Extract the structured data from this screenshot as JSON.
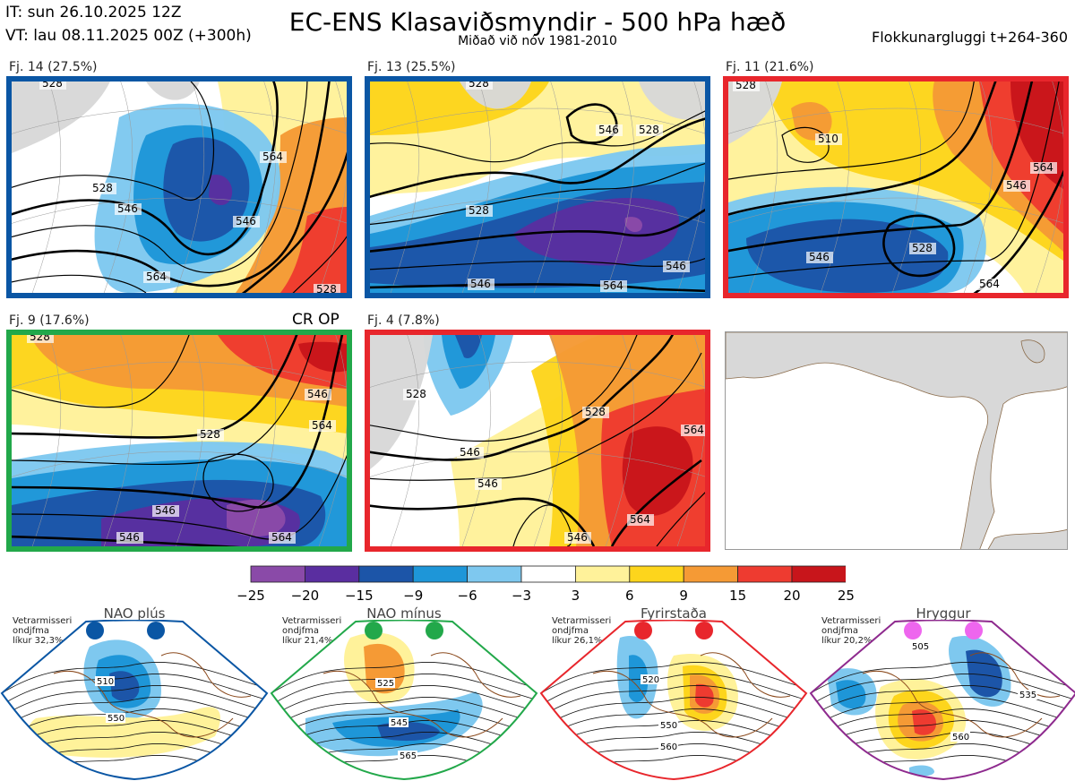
{
  "header": {
    "it": "IT: sun 26.10.2025 12Z",
    "vt": "VT: lau 08.11.2025 00Z  (+300h)",
    "title": "EC-ENS Klasaviðsmyndir - 500 hPa hæð",
    "subtitle": "Miðað við nóv 1981-2010",
    "window": "Flokkunargluggi t+264-360"
  },
  "colors": {
    "m25": "#8a4aa8",
    "m20": "#5a2ea0",
    "m15": "#1c55a8",
    "m9": "#1e96d8",
    "m6": "#7ec8ef",
    "z": "#ffffff",
    "p3": "#fff29a",
    "p6": "#fdd51c",
    "p9": "#f59a35",
    "p15": "#ee3b30",
    "p20": "#c8151b",
    "land": "#d8d8d8",
    "blue_border": "#0a56a4",
    "red_border": "#e8262c",
    "green_border": "#22a84a",
    "purple_border": "#8e2a8e",
    "magenta_dot": "#ee66ee"
  },
  "panels": [
    {
      "label": "Fj. 14 (27.5%)",
      "border": "blue",
      "contours": [
        "528",
        "546",
        "528",
        "546",
        "564",
        "564",
        "528"
      ]
    },
    {
      "label": "Fj. 13 (25.5%)",
      "border": "blue",
      "contours": [
        "528",
        "546",
        "528",
        "528",
        "546",
        "546",
        "564"
      ]
    },
    {
      "label": "Fj. 11 (21.6%)",
      "border": "red",
      "contours": [
        "528",
        "546",
        "564",
        "528",
        "546",
        "564",
        "510"
      ]
    },
    {
      "label": "Fj. 9 (17.6%)",
      "border": "green",
      "note": "CR OP",
      "contours": [
        "528",
        "546",
        "528",
        "546",
        "564",
        "564",
        "546"
      ]
    },
    {
      "label": "Fj. 4 (7.8%)",
      "border": "red",
      "contours": [
        "528",
        "546",
        "528",
        "546",
        "564",
        "564",
        "546"
      ]
    }
  ],
  "chart_data": {
    "type": "heatmap",
    "title": "EC-ENS Klasaviðsmyndir - 500 hPa hæð",
    "variable": "500 hPa height anomaly",
    "contour_units": "dam",
    "clusters": [
      {
        "name": "Fj. 14",
        "probability_pct": 27.5
      },
      {
        "name": "Fj. 13",
        "probability_pct": 25.5
      },
      {
        "name": "Fj. 11",
        "probability_pct": 21.6
      },
      {
        "name": "Fj. 9",
        "probability_pct": 17.6
      },
      {
        "name": "Fj. 4",
        "probability_pct": 7.8
      }
    ],
    "colorbar": {
      "ticks": [
        "−25",
        "−20",
        "−15",
        "−9",
        "−6",
        "−3",
        "3",
        "6",
        "9",
        "15",
        "20",
        "25"
      ],
      "bins": [
        -25,
        -20,
        -15,
        -9,
        -6,
        -3,
        3,
        6,
        9,
        15,
        20,
        25
      ]
    }
  },
  "regimes": [
    {
      "name": "NAO plús",
      "note": [
        "Vetrarmisseri",
        "ondjfma",
        "líkur 32,3%"
      ],
      "border": "blue",
      "dots": "blue",
      "labels": [
        "510",
        "550"
      ]
    },
    {
      "name": "NAO mínus",
      "note": [
        "Vetrarmisseri",
        "ondjfma",
        "líkur 21,4%"
      ],
      "border": "green",
      "dots": "green",
      "labels": [
        "525",
        "545",
        "565"
      ]
    },
    {
      "name": "Fyrirstaða",
      "note": [
        "Vetrarmisseri",
        "ondjfma",
        "líkur 26,1%"
      ],
      "border": "red",
      "dots": "red",
      "labels": [
        "520",
        "550",
        "560"
      ]
    },
    {
      "name": "Hryggur",
      "note": [
        "Vetrarmisseri",
        "ondjfma",
        "líkur 20,2%"
      ],
      "border": "purple",
      "dots": "magenta",
      "labels": [
        "505",
        "535",
        "560"
      ]
    }
  ]
}
